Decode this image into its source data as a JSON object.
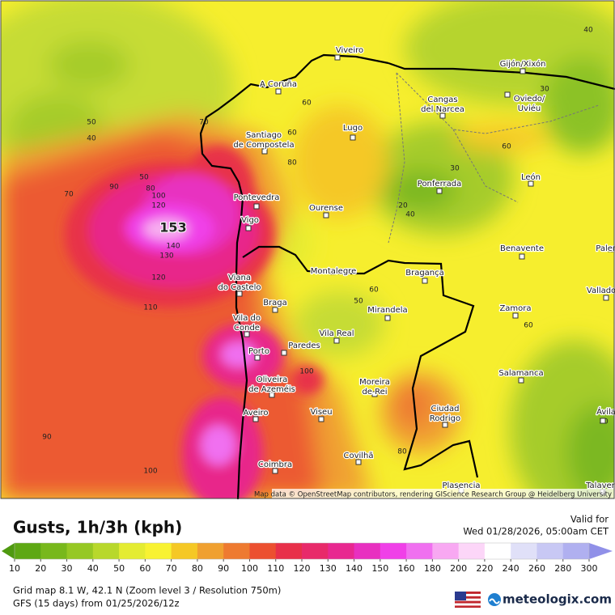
{
  "map": {
    "cities": [
      [
        "Viveiro"
      ],
      [
        "A Coruña"
      ],
      [
        "Santiago",
        "de Compostela"
      ],
      [
        "Lugo"
      ],
      [
        "Pontevedra"
      ],
      [
        "Vigo"
      ],
      [
        "Ourense"
      ],
      [
        "Viana",
        "do Castelo"
      ],
      [
        "Braga"
      ],
      [
        "Montalegre"
      ],
      [
        "Bragança"
      ],
      [
        "Mirandela"
      ],
      [
        "Vila do",
        "Conde"
      ],
      [
        "Porto"
      ],
      [
        "Paredes"
      ],
      [
        "Vila Real"
      ],
      [
        "Oliveira",
        "de Azeméis"
      ],
      [
        "Moreira",
        "de Rei"
      ],
      [
        "Aveiro"
      ],
      [
        "Viseu"
      ],
      [
        "Ciudad",
        "Rodrigo"
      ],
      [
        "Coimbra"
      ],
      [
        "Covilhã"
      ],
      [
        "Plasencia"
      ],
      [
        "Gijón/Xixón"
      ],
      [
        "Cangas",
        "del Narcea"
      ],
      [
        "Oviedo/",
        "Uviéu"
      ],
      [
        "León"
      ],
      [
        "Ponferrada"
      ],
      [
        "Benavente"
      ],
      [
        "Zamora"
      ],
      [
        "Salamanca"
      ],
      [
        "Valladolid"
      ],
      [
        "Ávila"
      ],
      [
        "Talavera"
      ],
      [
        "Palencia"
      ]
    ],
    "contour_labels": [
      "40",
      "50",
      "40",
      "70",
      "60",
      "60",
      "80",
      "50",
      "90",
      "80",
      "70",
      "100",
      "120",
      "153",
      "140",
      "130",
      "120",
      "110",
      "90",
      "100",
      "100",
      "80",
      "30",
      "30",
      "20",
      "40",
      "60",
      "60",
      "50",
      "60",
      "30"
    ],
    "attribution": "Map data © OpenStreetMap contributors, rendering GIScience Research Group @ Heidelberg University"
  },
  "legend": {
    "title": "Gusts, 1h/3h (kph)",
    "valid_label": "Valid for",
    "valid_time": "Wed 01/28/2026, 05:00am CET",
    "ticks": [
      10,
      20,
      30,
      40,
      50,
      60,
      70,
      80,
      90,
      100,
      110,
      120,
      130,
      140,
      150,
      160,
      180,
      200,
      220,
      240,
      260,
      280,
      300
    ],
    "colors": [
      "#4f9a10",
      "#5ea814",
      "#78b81c",
      "#96c824",
      "#b8d82c",
      "#e4ec32",
      "#f8f232",
      "#f5c825",
      "#f0a030",
      "#ee7a30",
      "#ec5030",
      "#e8304a",
      "#e82a6a",
      "#e82890",
      "#e830c0",
      "#f040e8",
      "#f070f0",
      "#f8a8f2",
      "#fcd6f8",
      "#ffffff",
      "#e0e0f8",
      "#c8c8f4",
      "#b0b0f0",
      "#9090e8"
    ]
  },
  "footer": {
    "grid": "Grid map 8.1 W, 42.1 N (Zoom level 3 / Resolution 750m)",
    "model": "GFS (15 days) from 01/25/2026/12z",
    "brand": "meteologix.com"
  }
}
